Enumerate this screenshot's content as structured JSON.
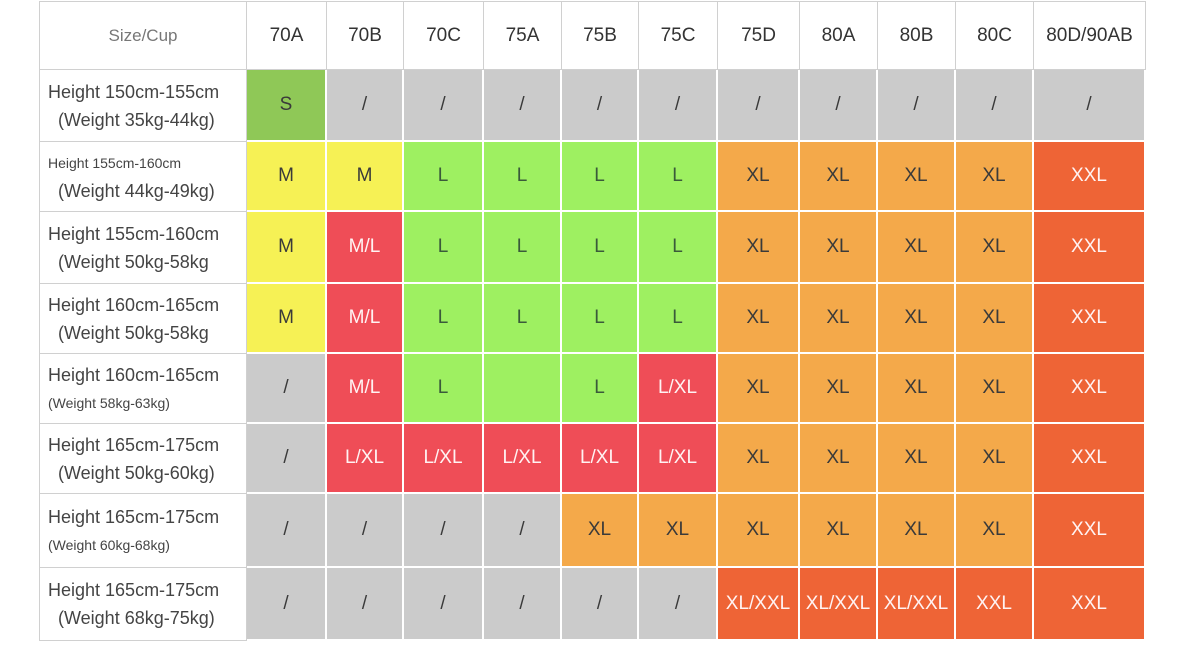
{
  "colors": {
    "na": "#cbcbcb",
    "S": "#8fc857",
    "M": "#f6f155",
    "M/L": "#ef4d57",
    "L": "#9ef061",
    "L/XL": "#ef4d57",
    "XL": "#f4a94a",
    "XL/XXL": "#ee6436",
    "XXL": "#ee6436"
  },
  "corner_label": "Size/Cup",
  "columns": [
    "70A",
    "70B",
    "70C",
    "75A",
    "75B",
    "75C",
    "75D",
    "80A",
    "80B",
    "80C",
    "80D/90AB"
  ],
  "rows": [
    {
      "height": "Height 150cm-155cm",
      "weight": "(Weight 35kg-44kg)",
      "small_h": false,
      "small_w": false,
      "cells": [
        "S",
        "/",
        "/",
        "/",
        "/",
        "/",
        "/",
        "/",
        "/",
        "/",
        "/"
      ]
    },
    {
      "height": "Height 155cm-160cm",
      "weight": "(Weight 44kg-49kg)",
      "small_h": true,
      "small_w": false,
      "cells": [
        "M",
        "M",
        "L",
        "L",
        "L",
        "L",
        "XL",
        "XL",
        "XL",
        "XL",
        "XXL"
      ]
    },
    {
      "height": "Height 155cm-160cm",
      "weight": "(Weight 50kg-58kg",
      "small_h": false,
      "small_w": false,
      "cells": [
        "M",
        "M/L",
        "L",
        "L",
        "L",
        "L",
        "XL",
        "XL",
        "XL",
        "XL",
        "XXL"
      ]
    },
    {
      "height": "Height 160cm-165cm",
      "weight": "(Weight 50kg-58kg",
      "small_h": false,
      "small_w": false,
      "cells": [
        "M",
        "M/L",
        "L",
        "L",
        "L",
        "L",
        "XL",
        "XL",
        "XL",
        "XL",
        "XXL"
      ]
    },
    {
      "height": "Height 160cm-165cm",
      "weight": "(Weight 58kg-63kg)",
      "small_h": false,
      "small_w": true,
      "cells": [
        "/",
        "M/L",
        "L",
        "",
        "L",
        "L/XL",
        "XL",
        "XL",
        "XL",
        "XL",
        "XXL"
      ],
      "blank_colors": {
        "3": "L"
      }
    },
    {
      "height": "Height 165cm-175cm",
      "weight": "(Weight 50kg-60kg)",
      "small_h": false,
      "small_w": false,
      "cells": [
        "/",
        "L/XL",
        "L/XL",
        "L/XL",
        "L/XL",
        "L/XL",
        "XL",
        "XL",
        "XL",
        "XL",
        "XXL"
      ]
    },
    {
      "height": "Height 165cm-175cm",
      "weight": "(Weight 60kg-68kg)",
      "small_h": false,
      "small_w": true,
      "cells": [
        "/",
        "/",
        "/",
        "/",
        "XL",
        "XL",
        "XL",
        "XL",
        "XL",
        "XL",
        "XXL"
      ]
    },
    {
      "height": "Height 165cm-175cm",
      "weight": "(Weight 68kg-75kg)",
      "small_h": false,
      "small_w": false,
      "cells": [
        "/",
        "/",
        "/",
        "/",
        "/",
        "/",
        "XL/XXL",
        "XL/XXL",
        "XL/XXL",
        "XXL",
        "XXL"
      ]
    }
  ]
}
